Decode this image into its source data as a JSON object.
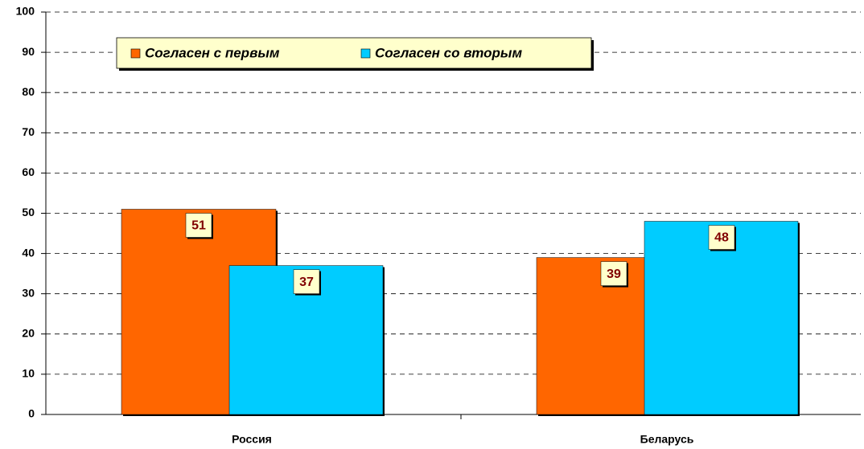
{
  "chart_data": {
    "type": "bar",
    "categories": [
      "Россия",
      "Беларусь"
    ],
    "series": [
      {
        "name": "Согласен с первым",
        "color": "#ff6600",
        "values": [
          51,
          39
        ]
      },
      {
        "name": "Согласен со вторым",
        "color": "#00ccff",
        "values": [
          37,
          48
        ]
      }
    ],
    "ylim": [
      0,
      100
    ],
    "yticks": [
      0,
      10,
      20,
      30,
      40,
      50,
      60,
      70,
      80,
      90,
      100
    ],
    "grid": true,
    "legend": "top-left"
  }
}
